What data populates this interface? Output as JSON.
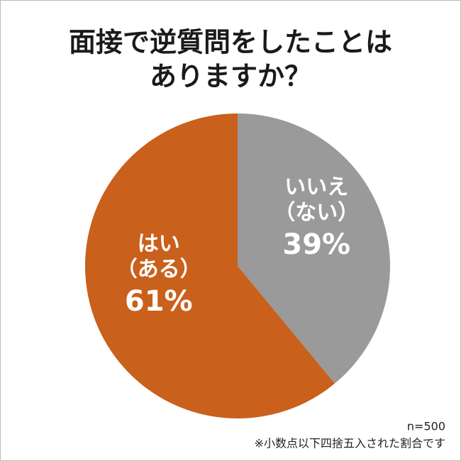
{
  "chart_data": {
    "type": "pie",
    "title": [
      "面接で逆質問をしたことは",
      "ありますか？"
    ],
    "categories": [
      [
        "いいえ",
        "（ない）"
      ],
      [
        "はい",
        "（ある）"
      ]
    ],
    "values": [
      39,
      61
    ],
    "value_labels": [
      "39%",
      "61%"
    ],
    "colors": [
      "#9a9a9a",
      "#c9601b"
    ],
    "notes": [
      "n=500",
      "※小数点以下四捨五入された割合です"
    ]
  }
}
